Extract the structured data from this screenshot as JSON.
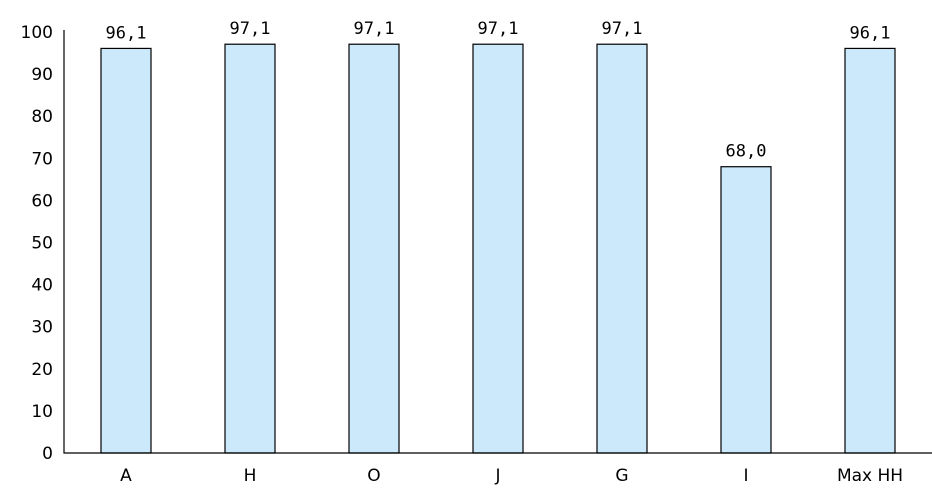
{
  "chart_data": {
    "type": "bar",
    "categories": [
      "A",
      "H",
      "O",
      "J",
      "G",
      "I",
      "Max HH"
    ],
    "values": [
      96.1,
      97.1,
      97.1,
      97.1,
      97.1,
      68.0,
      96.1
    ],
    "data_labels": [
      "96,1",
      "97,1",
      "97,1",
      "97,1",
      "97,1",
      "68,0",
      "96,1"
    ],
    "y_ticks": [
      "0",
      "10",
      "20",
      "30",
      "40",
      "50",
      "60",
      "70",
      "80",
      "90",
      "100"
    ],
    "ylim": [
      0,
      100
    ],
    "grid": false,
    "legend": "none",
    "bar_color": "#cce9fc",
    "bar_outline_color": "#000000"
  }
}
